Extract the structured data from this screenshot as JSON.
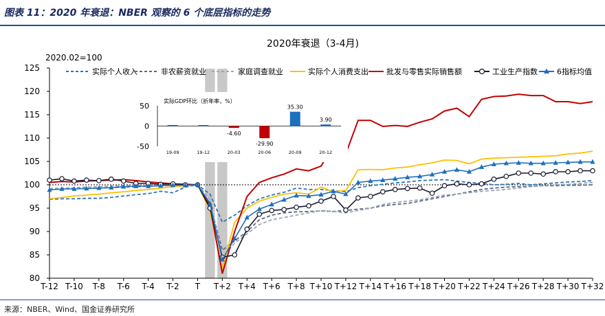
{
  "figure_title": "图表 11：2020 年衰退：NBER 观察的 6 个底层指标的走势",
  "source": "来源：NBER、Wind、国金证券研究所",
  "chart_data": [
    {
      "type": "line",
      "title": "2020年衰退（3-4月)",
      "unit_note": "2020.02=100",
      "xlabel": "",
      "ylabel": "",
      "ylim": [
        80,
        125
      ],
      "yticks": [
        80,
        85,
        90,
        95,
        100,
        105,
        110,
        115,
        120,
        125
      ],
      "x": [
        -12,
        -11,
        -10,
        -9,
        -8,
        -7,
        -6,
        -5,
        -4,
        -3,
        -2,
        -1,
        0,
        1,
        2,
        3,
        4,
        5,
        6,
        7,
        8,
        9,
        10,
        11,
        12,
        13,
        14,
        15,
        16,
        17,
        18,
        19,
        20,
        21,
        22,
        23,
        24,
        25,
        26,
        27,
        28,
        29,
        30,
        31,
        32
      ],
      "xtick_labels": [
        "T-12",
        "T-10",
        "T-8",
        "T-6",
        "T-4",
        "T-2",
        "T",
        "T+2",
        "T+4",
        "T+6",
        "T+8",
        "T+10",
        "T+12",
        "T+14",
        "T+16",
        "T+18",
        "T+20",
        "T+22",
        "T+24",
        "T+26",
        "T+28",
        "T+30",
        "T+32"
      ],
      "reference_line": 100,
      "recession_shading": [
        [
          0.6,
          1.4
        ],
        [
          1.6,
          2.4
        ]
      ],
      "legend_position": "top",
      "series": [
        {
          "name": "实际个人收入",
          "color": "#2e75b6",
          "style": "dashed",
          "marker": "none",
          "values": [
            96.9,
            97.0,
            97.0,
            97.1,
            97.1,
            97.3,
            97.6,
            97.9,
            98.1,
            98.6,
            98.3,
            99.5,
            100.0,
            98.0,
            92.0,
            93.5,
            95.5,
            97.0,
            97.8,
            98.4,
            99.3,
            99.0,
            99.0,
            98.8,
            98.5,
            99.4,
            99.8,
            100.1,
            100.4,
            100.6,
            100.9,
            101.0,
            101.1,
            100.8,
            100.5,
            100.3,
            100.0,
            100.1,
            100.3,
            100.0,
            100.2,
            100.4,
            100.6,
            100.7,
            100.9
          ]
        },
        {
          "name": "非农薪资就业",
          "color": "#5b6780",
          "style": "dashed",
          "marker": "none",
          "values": [
            99.0,
            99.1,
            99.2,
            99.2,
            99.3,
            99.4,
            99.5,
            99.6,
            99.7,
            99.8,
            99.9,
            99.95,
            100.0,
            96.0,
            86.0,
            88.0,
            90.0,
            92.5,
            93.5,
            94.0,
            94.2,
            94.3,
            94.4,
            94.3,
            94.5,
            94.8,
            95.0,
            95.5,
            95.8,
            96.0,
            96.5,
            97.0,
            97.5,
            98.0,
            98.5,
            99.0,
            99.3,
            99.5,
            99.6,
            99.7,
            99.8,
            99.8,
            99.9,
            99.9,
            100.0
          ]
        },
        {
          "name": "家庭调查就业",
          "color": "#9aa7bb",
          "style": "dashed",
          "marker": "none",
          "values": [
            99.2,
            99.3,
            99.4,
            99.5,
            99.6,
            99.7,
            99.8,
            99.9,
            99.9,
            99.9,
            99.95,
            100.0,
            100.0,
            97.0,
            84.5,
            87.5,
            89.5,
            91.5,
            92.5,
            93.0,
            93.5,
            94.0,
            94.5,
            94.3,
            94.0,
            94.5,
            95.0,
            95.8,
            96.2,
            96.5,
            96.8,
            97.3,
            97.8,
            98.0,
            98.3,
            98.6,
            98.8,
            99.0,
            99.3,
            99.6,
            99.8,
            100.0,
            100.1,
            100.3,
            100.5
          ]
        },
        {
          "name": "实际个人消费支出",
          "color": "#ffc000",
          "style": "solid",
          "marker": "none",
          "values": [
            97.0,
            97.3,
            97.6,
            97.8,
            98.0,
            98.3,
            98.5,
            98.8,
            99.0,
            99.3,
            99.6,
            99.8,
            100.0,
            94.5,
            82.0,
            92.0,
            95.0,
            96.5,
            97.3,
            98.0,
            98.3,
            98.0,
            99.5,
            98.5,
            98.8,
            103.2,
            103.3,
            103.2,
            103.6,
            103.8,
            104.3,
            104.7,
            105.3,
            105.2,
            104.5,
            105.5,
            105.7,
            105.8,
            105.9,
            106.0,
            106.1,
            106.2,
            106.6,
            106.8,
            107.2
          ]
        },
        {
          "name": "批发与零售实际销售额",
          "color": "#c00000",
          "style": "solid",
          "marker": "none",
          "values": [
            100.5,
            100.7,
            100.6,
            100.8,
            100.9,
            101.0,
            101.1,
            100.9,
            100.6,
            100.4,
            100.2,
            100.1,
            100.0,
            95.5,
            81.0,
            90.0,
            97.5,
            100.5,
            101.5,
            102.3,
            103.4,
            103.0,
            104.0,
            108.4,
            106.6,
            113.8,
            113.8,
            112.5,
            112.7,
            112.5,
            113.4,
            114.1,
            115.8,
            116.4,
            114.6,
            118.3,
            118.9,
            119.0,
            119.4,
            119.1,
            119.1,
            117.8,
            117.8,
            117.4,
            117.8
          ]
        },
        {
          "name": "工业生产指数",
          "color": "#1a1a2e",
          "style": "solid",
          "marker": "circle",
          "values": [
            101.0,
            101.3,
            100.8,
            101.0,
            100.9,
            101.2,
            100.8,
            100.3,
            100.3,
            100.1,
            100.2,
            100.0,
            100.0,
            95.0,
            84.5,
            85.0,
            90.5,
            93.7,
            94.5,
            94.7,
            95.2,
            95.5,
            96.5,
            97.5,
            94.6,
            97.2,
            97.5,
            98.5,
            99.0,
            99.2,
            99.3,
            98.2,
            99.8,
            100.2,
            100.0,
            100.2,
            101.2,
            101.8,
            102.5,
            102.5,
            102.3,
            102.8,
            102.8,
            103.0,
            103.0
          ]
        },
        {
          "name": "6指标均值",
          "color": "#1f6fbf",
          "style": "solid",
          "marker": "triangle",
          "values": [
            98.9,
            99.1,
            99.1,
            99.2,
            99.3,
            99.4,
            99.6,
            99.7,
            99.7,
            99.8,
            99.9,
            99.9,
            100.0,
            96.0,
            84.0,
            88.5,
            93.0,
            94.8,
            95.8,
            96.8,
            97.7,
            97.6,
            97.9,
            98.6,
            98.0,
            100.5,
            100.8,
            101.0,
            101.3,
            101.6,
            101.8,
            102.2,
            102.8,
            103.2,
            102.8,
            103.8,
            104.4,
            104.6,
            104.7,
            104.6,
            104.6,
            104.7,
            104.8,
            104.9,
            104.9
          ]
        }
      ]
    },
    {
      "type": "bar",
      "title": "实际GDP环比（折年率，%）",
      "categories": [
        "19-09",
        "19-12",
        "20-03",
        "20-06",
        "20-09",
        "20-12"
      ],
      "values": [
        2.6,
        2.4,
        -4.6,
        -29.9,
        35.3,
        3.9
      ],
      "data_labels": [
        "",
        "",
        "-4.60",
        "-29.90",
        "35.30",
        "3.90"
      ],
      "colors": [
        "#1f6fbf",
        "#1f6fbf",
        "#c00000",
        "#c00000",
        "#1f6fbf",
        "#1f6fbf"
      ],
      "ylim": [
        -50,
        50
      ],
      "yticks": [
        -50,
        0,
        50
      ],
      "ytick_labels": [
        "-50",
        "0",
        "50"
      ]
    }
  ]
}
